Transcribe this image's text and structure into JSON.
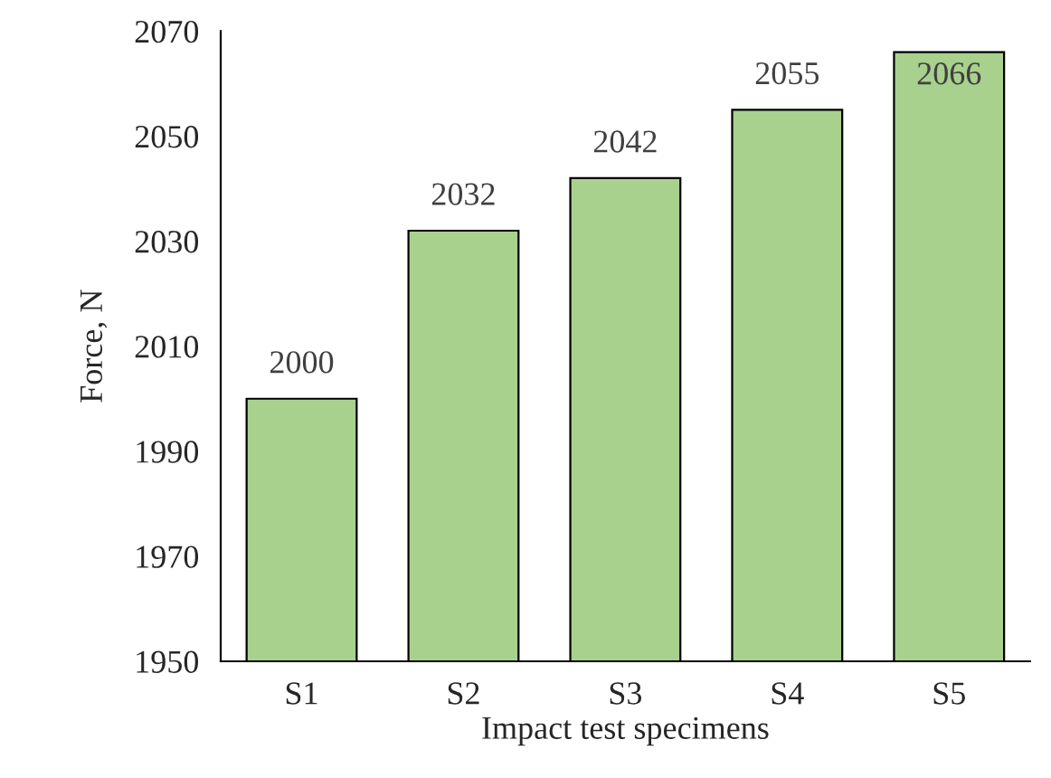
{
  "chart_data": {
    "type": "bar",
    "xlabel": "Impact test specimens",
    "ylabel": "Force, N",
    "categories": [
      "S1",
      "S2",
      "S3",
      "S4",
      "S5"
    ],
    "values": [
      2000,
      2032,
      2042,
      2055,
      2066
    ],
    "color": "#a9d18e",
    "ylim": [
      1950,
      2070
    ],
    "yticks": [
      1950,
      1970,
      1990,
      2010,
      2030,
      2050,
      2070
    ],
    "grid": false,
    "data_labels": true
  }
}
